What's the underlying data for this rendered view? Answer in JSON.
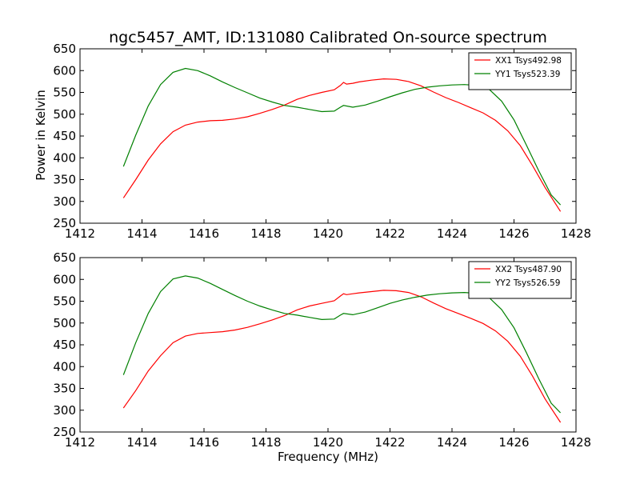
{
  "figure": {
    "title": "ngc5457_AMT, ID:131080 Calibrated On-source spectrum",
    "ylabel": "Power in Kelvin",
    "xlabel": "Frequency (MHz)"
  },
  "chart_data": [
    {
      "type": "line",
      "title": "ngc5457_AMT, ID:131080 Calibrated On-source spectrum",
      "xlabel": "",
      "ylabel": "Power in Kelvin",
      "xlim": [
        1412,
        1428
      ],
      "ylim": [
        250,
        650
      ],
      "xticks": [
        "1412",
        "1414",
        "1416",
        "1418",
        "1420",
        "1422",
        "1424",
        "1426",
        "1428"
      ],
      "yticks": [
        "250",
        "300",
        "350",
        "400",
        "450",
        "500",
        "550",
        "600",
        "650"
      ],
      "legend_position": "top-right",
      "series": [
        {
          "name": "XX1 Tsys492.98",
          "color": "#ff0000",
          "x": [
            1413.4,
            1413.8,
            1414.2,
            1414.6,
            1415.0,
            1415.4,
            1415.8,
            1416.2,
            1416.6,
            1417.0,
            1417.4,
            1417.8,
            1418.2,
            1418.6,
            1419.0,
            1419.4,
            1419.8,
            1420.2,
            1420.4,
            1420.5,
            1420.6,
            1420.8,
            1421.0,
            1421.4,
            1421.8,
            1422.2,
            1422.6,
            1423.0,
            1423.4,
            1423.8,
            1424.2,
            1424.6,
            1425.0,
            1425.4,
            1425.8,
            1426.2,
            1426.6,
            1427.0,
            1427.5
          ],
          "values": [
            308,
            350,
            395,
            432,
            460,
            475,
            482,
            485,
            486,
            489,
            494,
            502,
            511,
            521,
            534,
            543,
            550,
            556,
            566,
            573,
            569,
            571,
            574,
            578,
            581,
            580,
            575,
            565,
            551,
            538,
            527,
            515,
            503,
            486,
            462,
            428,
            382,
            332,
            277
          ]
        },
        {
          "name": "YY1 Tsys523.39",
          "color": "#008000",
          "x": [
            1413.4,
            1413.8,
            1414.2,
            1414.6,
            1415.0,
            1415.4,
            1415.8,
            1416.2,
            1416.6,
            1417.0,
            1417.4,
            1417.8,
            1418.2,
            1418.6,
            1419.0,
            1419.4,
            1419.8,
            1420.2,
            1420.4,
            1420.5,
            1420.8,
            1421.2,
            1421.6,
            1422.0,
            1422.4,
            1422.8,
            1423.2,
            1423.6,
            1424.0,
            1424.4,
            1424.8,
            1425.2,
            1425.6,
            1426.0,
            1426.4,
            1426.8,
            1427.2,
            1427.5
          ],
          "values": [
            380,
            452,
            519,
            568,
            596,
            605,
            600,
            588,
            574,
            561,
            549,
            537,
            528,
            520,
            516,
            511,
            506,
            507,
            516,
            520,
            516,
            521,
            530,
            540,
            549,
            557,
            562,
            565,
            567,
            568,
            566,
            557,
            530,
            487,
            429,
            370,
            315,
            292
          ]
        }
      ]
    },
    {
      "type": "line",
      "title": "",
      "xlabel": "Frequency (MHz)",
      "ylabel": "",
      "xlim": [
        1412,
        1428
      ],
      "ylim": [
        250,
        650
      ],
      "xticks": [
        "1412",
        "1414",
        "1416",
        "1418",
        "1420",
        "1422",
        "1424",
        "1426",
        "1428"
      ],
      "yticks": [
        "250",
        "300",
        "350",
        "400",
        "450",
        "500",
        "550",
        "600",
        "650"
      ],
      "legend_position": "top-right",
      "series": [
        {
          "name": "XX2 Tsys487.90",
          "color": "#ff0000",
          "x": [
            1413.4,
            1413.8,
            1414.2,
            1414.6,
            1415.0,
            1415.4,
            1415.8,
            1416.2,
            1416.6,
            1417.0,
            1417.4,
            1417.8,
            1418.2,
            1418.6,
            1419.0,
            1419.4,
            1419.8,
            1420.2,
            1420.4,
            1420.5,
            1420.6,
            1420.8,
            1421.0,
            1421.4,
            1421.8,
            1422.2,
            1422.6,
            1423.0,
            1423.4,
            1423.8,
            1424.2,
            1424.6,
            1425.0,
            1425.4,
            1425.8,
            1426.2,
            1426.6,
            1427.0,
            1427.5
          ],
          "values": [
            305,
            345,
            390,
            425,
            455,
            470,
            476,
            478,
            480,
            484,
            490,
            498,
            507,
            517,
            530,
            539,
            545,
            551,
            562,
            567,
            565,
            567,
            569,
            572,
            575,
            574,
            570,
            560,
            546,
            533,
            522,
            511,
            499,
            482,
            458,
            424,
            378,
            326,
            272
          ]
        },
        {
          "name": "YY2 Tsys526.59",
          "color": "#008000",
          "x": [
            1413.4,
            1413.8,
            1414.2,
            1414.6,
            1415.0,
            1415.4,
            1415.8,
            1416.2,
            1416.6,
            1417.0,
            1417.4,
            1417.8,
            1418.2,
            1418.6,
            1419.0,
            1419.4,
            1419.8,
            1420.2,
            1420.4,
            1420.5,
            1420.8,
            1421.2,
            1421.6,
            1422.0,
            1422.4,
            1422.8,
            1423.2,
            1423.6,
            1424.0,
            1424.4,
            1424.8,
            1425.2,
            1425.6,
            1426.0,
            1426.4,
            1426.8,
            1427.2,
            1427.5
          ],
          "values": [
            381,
            455,
            522,
            572,
            601,
            608,
            603,
            591,
            577,
            563,
            550,
            539,
            530,
            522,
            518,
            513,
            508,
            509,
            518,
            522,
            519,
            525,
            535,
            545,
            553,
            559,
            564,
            567,
            569,
            570,
            568,
            558,
            531,
            489,
            432,
            372,
            316,
            294
          ]
        }
      ]
    }
  ]
}
